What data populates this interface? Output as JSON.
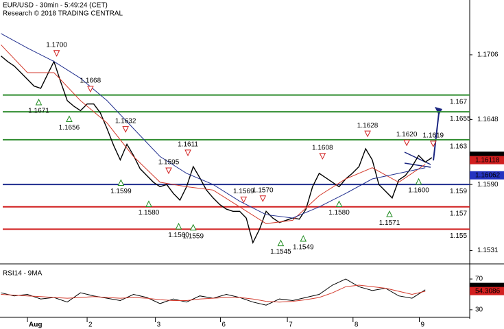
{
  "chart_data": {
    "type": "line",
    "title": "EUR/USD - 30min - 5:49:24 (CET)",
    "subtitle": "Research © 2018 TRADING CENTRAL",
    "xlim": [
      -4.14,
      66.7
    ],
    "xticks": [
      {
        "value": 0,
        "label": "Aug"
      },
      {
        "value": 9,
        "label": "2"
      },
      {
        "value": 19.3,
        "label": "3"
      },
      {
        "value": 29.1,
        "label": "6"
      },
      {
        "value": 39.2,
        "label": "7"
      },
      {
        "value": 49.1,
        "label": "8"
      },
      {
        "value": 59.1,
        "label": "9"
      }
    ],
    "ylim": [
      1.1519,
      1.1755
    ],
    "yticks": [
      1.1706,
      1.1648,
      {
        "value": 1.159,
        "label": "1.1590"
      },
      1.1531
    ],
    "series": [
      {
        "color": "#000000",
        "x": [
          -4,
          -3,
          -2,
          -1,
          0,
          1,
          2,
          3,
          4,
          5,
          6,
          7,
          8,
          9,
          10,
          11,
          12,
          13,
          14,
          15,
          16,
          17,
          18,
          19,
          20,
          21,
          22,
          23,
          24,
          25,
          26,
          27,
          28,
          29,
          30,
          31,
          32,
          33,
          34,
          35,
          36,
          37,
          38,
          39,
          40,
          41,
          42,
          43,
          44,
          45,
          46,
          47,
          48,
          49,
          50,
          51,
          52,
          53,
          54,
          55,
          56,
          57,
          58,
          59,
          60,
          61
        ],
        "values": [
          1.1705,
          1.17,
          1.1696,
          1.169,
          1.1684,
          1.1678,
          1.1676,
          1.1688,
          1.17,
          1.1682,
          1.1665,
          1.166,
          1.1656,
          1.1662,
          1.1662,
          1.1654,
          1.164,
          1.1625,
          1.1612,
          1.1626,
          1.1616,
          1.1604,
          1.1598,
          1.1592,
          1.1588,
          1.159,
          1.1582,
          1.1576,
          1.1588,
          1.1606,
          1.1596,
          1.1585,
          1.1578,
          1.1572,
          1.1568,
          1.1566,
          1.1566,
          1.156,
          1.1538,
          1.155,
          1.1566,
          1.156,
          1.1556,
          1.1558,
          1.156,
          1.1559,
          1.1568,
          1.1588,
          1.16,
          1.1596,
          1.1592,
          1.1588,
          1.1595,
          1.16,
          1.1606,
          1.1622,
          1.1612,
          1.159,
          1.1584,
          1.1578,
          1.1594,
          1.1598,
          1.1606,
          1.1616,
          1.161,
          1.1614
        ]
      },
      {
        "color": "#d33a2c",
        "x": [
          -4,
          0,
          4,
          8,
          12,
          16,
          20,
          24,
          28,
          32,
          36,
          40,
          44,
          48,
          52,
          56,
          60
        ],
        "values": [
          1.1715,
          1.169,
          1.169,
          1.1665,
          1.1645,
          1.1615,
          1.1592,
          1.1588,
          1.1585,
          1.157,
          1.1555,
          1.1558,
          1.158,
          1.1595,
          1.1605,
          1.1592,
          1.1608
        ]
      },
      {
        "color": "#22308f",
        "x": [
          -4,
          0,
          4,
          8,
          12,
          16,
          20,
          24,
          28,
          32,
          36,
          40,
          44,
          48,
          52,
          56,
          60
        ],
        "values": [
          1.1725,
          1.1712,
          1.17,
          1.1685,
          1.1665,
          1.164,
          1.1615,
          1.16,
          1.159,
          1.1575,
          1.1563,
          1.156,
          1.157,
          1.1582,
          1.1595,
          1.16,
          1.1605
        ]
      }
    ],
    "levels": [
      {
        "value": 1.167,
        "color": "#2e8b2e"
      },
      {
        "value": 1.1655,
        "color": "#2e8b2e"
      },
      {
        "value": 1.163,
        "color": "#2e8b2e"
      },
      {
        "value": 1.159,
        "color": "#1f2e8f"
      },
      {
        "value": 1.157,
        "color": "#d11f1f"
      },
      {
        "value": 1.155,
        "color": "#d11f1f"
      }
    ],
    "last_values": [
      {
        "value": 1.16157,
        "color": "#000000"
      },
      {
        "value": 1.16118,
        "color": "#d11f1f"
      },
      {
        "value": 1.16062,
        "color": "#2433c0"
      }
    ],
    "annotations": [
      {
        "x": 4.4,
        "value": 1.17,
        "label": "1.1700",
        "kind": "high"
      },
      {
        "x": 1.7,
        "value": 1.1671,
        "label": "1.1671",
        "kind": "low"
      },
      {
        "x": 6.3,
        "value": 1.1656,
        "label": "1.1656",
        "kind": "low"
      },
      {
        "x": 9.5,
        "value": 1.1668,
        "label": "1.1668",
        "kind": "high"
      },
      {
        "x": 14.8,
        "value": 1.1632,
        "label": "1.1632",
        "kind": "high"
      },
      {
        "x": 14.1,
        "value": 1.1599,
        "label": "1.1599",
        "kind": "low"
      },
      {
        "x": 21.3,
        "value": 1.1595,
        "label": "1.1595",
        "kind": "high"
      },
      {
        "x": 24.2,
        "value": 1.1611,
        "label": "1.1611",
        "kind": "high"
      },
      {
        "x": 18.3,
        "value": 1.158,
        "label": "1.1580",
        "kind": "low"
      },
      {
        "x": 22.8,
        "value": 1.156,
        "label": "1.1560",
        "kind": "low"
      },
      {
        "x": 25,
        "value": 1.1559,
        "label": "1.1559",
        "kind": "low"
      },
      {
        "x": 32.6,
        "value": 1.1569,
        "label": "1.1569",
        "kind": "high"
      },
      {
        "x": 35.5,
        "value": 1.157,
        "label": "1.1570",
        "kind": "high"
      },
      {
        "x": 38.2,
        "value": 1.1545,
        "label": "1.1545",
        "kind": "low"
      },
      {
        "x": 41.6,
        "value": 1.1549,
        "label": "1.1549",
        "kind": "low"
      },
      {
        "x": 44.5,
        "value": 1.1608,
        "label": "1.1608",
        "kind": "high"
      },
      {
        "x": 47,
        "value": 1.158,
        "label": "1.1580",
        "kind": "low"
      },
      {
        "x": 51.3,
        "value": 1.1628,
        "label": "1.1628",
        "kind": "high"
      },
      {
        "x": 54.6,
        "value": 1.1571,
        "label": "1.1571",
        "kind": "low"
      },
      {
        "x": 57.2,
        "value": 1.162,
        "label": "1.1620",
        "kind": "high"
      },
      {
        "x": 61.2,
        "value": 1.1619,
        "label": "1.1619",
        "kind": "high"
      },
      {
        "x": 59,
        "value": 1.16,
        "label": "1.1600",
        "kind": "low"
      }
    ],
    "rsi": {
      "title": "RSI14 - 9MA",
      "ylim": [
        21,
        87
      ],
      "yticks": [
        70,
        30
      ],
      "series": [
        {
          "color": "#000000",
          "x": [
            -4,
            -2,
            0,
            2,
            4,
            6,
            8,
            10,
            12,
            14,
            16,
            18,
            20,
            22,
            24,
            26,
            28,
            30,
            32,
            34,
            36,
            38,
            40,
            42,
            44,
            46,
            48,
            50,
            52,
            54,
            56,
            58,
            60
          ],
          "values": [
            52,
            48,
            50,
            44,
            46,
            40,
            52,
            48,
            45,
            42,
            50,
            46,
            38,
            44,
            40,
            48,
            45,
            50,
            46,
            40,
            36,
            44,
            42,
            46,
            50,
            62,
            70,
            60,
            55,
            58,
            48,
            45,
            56
          ]
        },
        {
          "color": "#d33a2c",
          "x": [
            -4,
            -2,
            0,
            2,
            4,
            6,
            8,
            10,
            12,
            14,
            16,
            18,
            20,
            22,
            24,
            26,
            28,
            30,
            32,
            34,
            36,
            38,
            40,
            42,
            44,
            46,
            48,
            50,
            52,
            54,
            56,
            58,
            60
          ],
          "values": [
            50,
            49,
            48,
            47,
            46,
            45,
            46,
            47,
            46,
            45,
            46,
            45,
            43,
            42,
            42,
            44,
            45,
            46,
            46,
            44,
            41,
            40,
            41,
            43,
            46,
            52,
            60,
            62,
            60,
            58,
            54,
            50,
            54
          ]
        }
      ],
      "last_values": [
        {
          "value": 59.6802,
          "color": "#000000"
        },
        {
          "value": 54.3086,
          "color": "#d11f1f"
        }
      ]
    }
  }
}
